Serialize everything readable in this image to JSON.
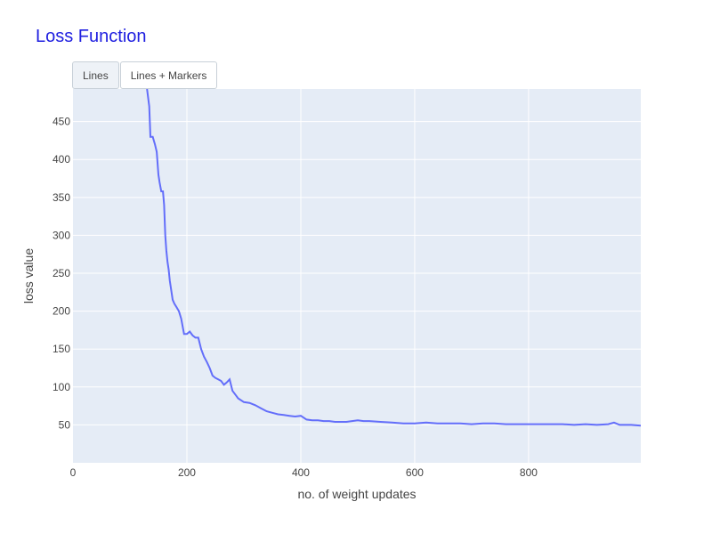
{
  "chart_data": {
    "type": "line",
    "title": "Loss Function",
    "xlabel": "no. of weight updates",
    "ylabel": "loss value",
    "xlim": [
      0,
      997
    ],
    "ylim": [
      0,
      493
    ],
    "x_ticks": [
      0,
      200,
      400,
      600,
      800
    ],
    "y_ticks": [
      50,
      100,
      150,
      200,
      250,
      300,
      350,
      400,
      450
    ],
    "grid": true,
    "colors": {
      "line": "#636efa",
      "plot_bg": "#e5ecf6",
      "grid": "#ffffff",
      "title": "#1f1fe0"
    },
    "series": [
      {
        "x": [
          130,
          134,
          136,
          140,
          144,
          147,
          150,
          152,
          155,
          158,
          160,
          162,
          164,
          166,
          168,
          170,
          172,
          175,
          178,
          182,
          186,
          190,
          195,
          200,
          205,
          210,
          215,
          220,
          225,
          230,
          235,
          240,
          245,
          250,
          255,
          260,
          265,
          270,
          275,
          280,
          285,
          290,
          300,
          310,
          320,
          330,
          340,
          350,
          360,
          370,
          380,
          390,
          400,
          410,
          420,
          430,
          440,
          450,
          460,
          470,
          480,
          490,
          500,
          510,
          520,
          540,
          560,
          580,
          600,
          620,
          640,
          660,
          680,
          700,
          720,
          740,
          760,
          780,
          800,
          820,
          840,
          860,
          880,
          900,
          920,
          940,
          950,
          960,
          970,
          980,
          997
        ],
        "y": [
          493,
          470,
          430,
          430,
          420,
          410,
          380,
          370,
          358,
          358,
          340,
          300,
          280,
          265,
          255,
          240,
          230,
          215,
          210,
          205,
          200,
          190,
          170,
          170,
          173,
          168,
          165,
          165,
          150,
          140,
          133,
          125,
          115,
          112,
          110,
          108,
          103,
          106,
          110,
          95,
          90,
          85,
          80,
          79,
          76,
          72,
          68,
          66,
          64,
          63,
          62,
          61,
          62,
          57,
          56,
          56,
          55,
          55,
          54,
          54,
          54,
          55,
          56,
          55,
          55,
          54,
          53,
          52,
          52,
          53,
          52,
          52,
          52,
          51,
          52,
          52,
          51,
          51,
          51,
          51,
          51,
          51,
          50,
          51,
          50,
          51,
          53,
          50,
          50,
          50,
          49
        ]
      }
    ],
    "buttons": [
      "Lines",
      "Lines + Markers"
    ]
  }
}
